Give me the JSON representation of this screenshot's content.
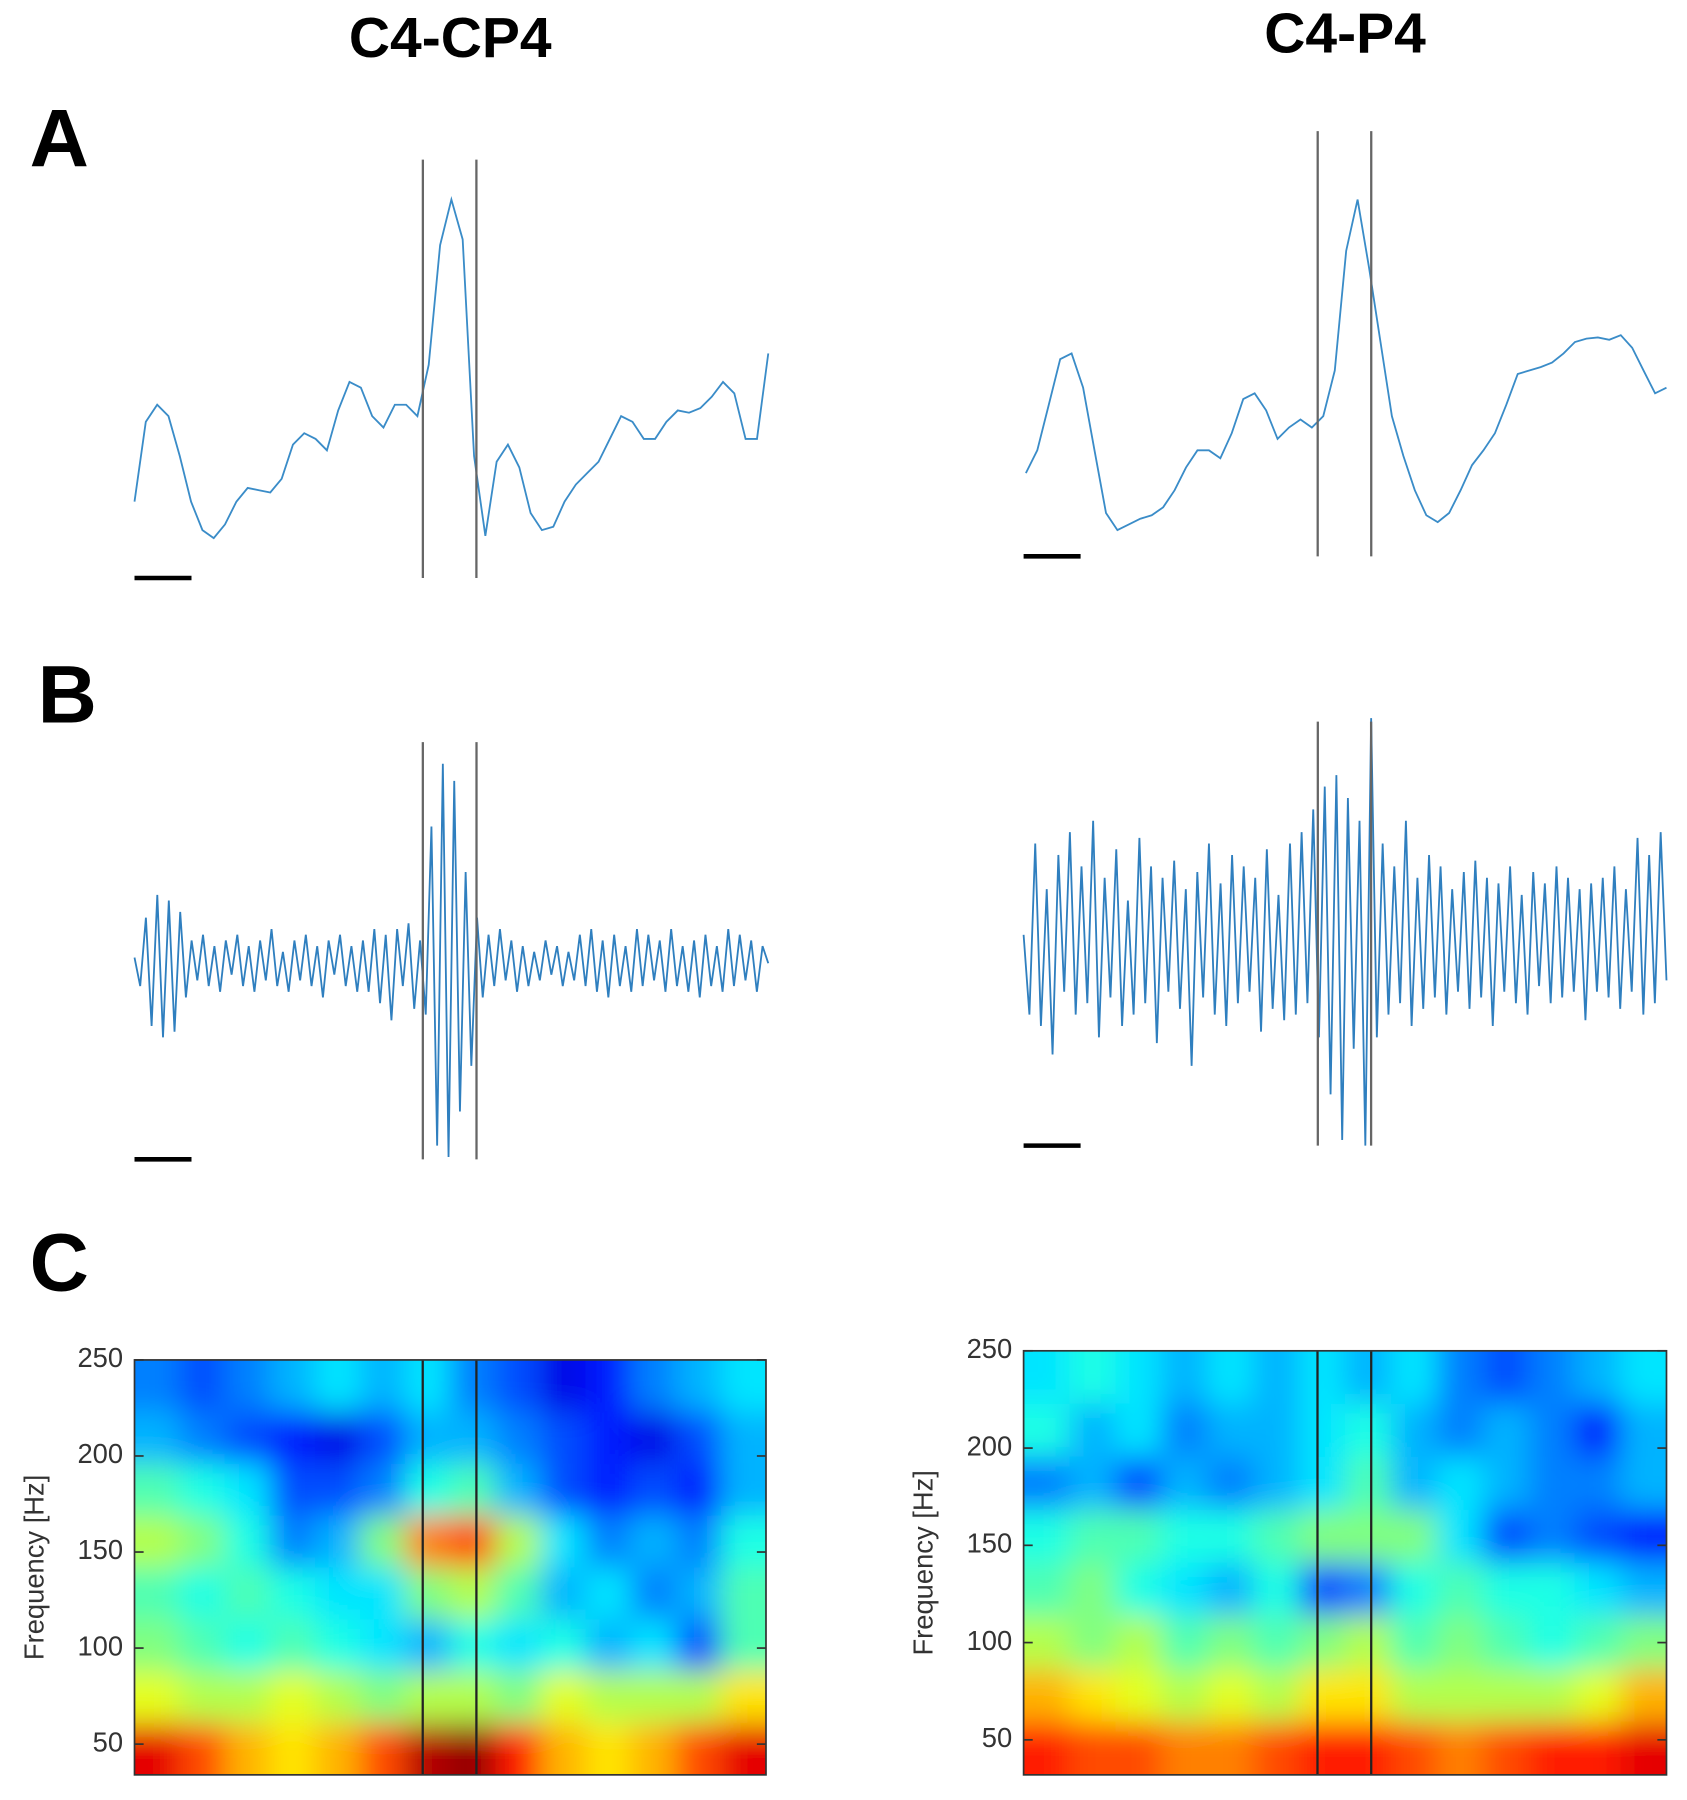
{
  "column_titles": [
    "C4-CP4",
    "C4-P4"
  ],
  "panel_labels": [
    "A",
    "B",
    "C"
  ],
  "chart_data": [
    {
      "type": "line",
      "color": "#3a8cc8",
      "events": [
        25.48,
        30.21
      ],
      "values": [
        60,
        130,
        145,
        135,
        100,
        60,
        35,
        28,
        40,
        60,
        72,
        70,
        68,
        80,
        110,
        120,
        115,
        105,
        140,
        165,
        160,
        135,
        125,
        145,
        145,
        135,
        180,
        285,
        325,
        290,
        100,
        30,
        95,
        110,
        90,
        50,
        35,
        38,
        60,
        75,
        85,
        95,
        115,
        135,
        130,
        115,
        115,
        130,
        140,
        138,
        142,
        152,
        165,
        155,
        115,
        115,
        190
      ]
    },
    {
      "type": "line",
      "color": "#3a8cc8",
      "events": [
        25.51,
        30.19
      ],
      "values": [
        65,
        85,
        125,
        165,
        170,
        140,
        85,
        30,
        15,
        20,
        25,
        28,
        35,
        50,
        70,
        85,
        85,
        78,
        100,
        130,
        135,
        120,
        95,
        105,
        112,
        105,
        115,
        155,
        260,
        305,
        245,
        180,
        115,
        80,
        50,
        28,
        22,
        30,
        50,
        72,
        85,
        100,
        125,
        152,
        155,
        158,
        162,
        170,
        180,
        183,
        184,
        182,
        186,
        175,
        155,
        135,
        140
      ]
    },
    {
      "type": "line",
      "color": "#2f7fbf",
      "events": [
        50.5,
        59.9
      ],
      "values": [
        5,
        -20,
        40,
        -55,
        60,
        -65,
        55,
        -60,
        45,
        -30,
        20,
        -15,
        25,
        -20,
        15,
        -25,
        20,
        -10,
        25,
        -20,
        15,
        -25,
        20,
        -15,
        30,
        -20,
        10,
        -25,
        20,
        -15,
        25,
        -20,
        15,
        -30,
        20,
        -10,
        25,
        -20,
        15,
        -25,
        20,
        -25,
        30,
        -35,
        25,
        -50,
        30,
        -20,
        35,
        -40,
        20,
        -45,
        120,
        -160,
        175,
        -170,
        160,
        -130,
        80,
        -90,
        40,
        -30,
        25,
        -20,
        30,
        -15,
        20,
        -25,
        15,
        -20,
        10,
        -15,
        20,
        -10,
        15,
        -20,
        10,
        -15,
        25,
        -20,
        30,
        -25,
        20,
        -30,
        25,
        -20,
        15,
        -25,
        30,
        -20,
        25,
        -15,
        20,
        -25,
        30,
        -20,
        15,
        -25,
        20,
        -30,
        25,
        -20,
        15,
        -25,
        30,
        -20,
        25,
        -15,
        20,
        -25,
        15,
        0
      ]
    },
    {
      "type": "line",
      "color": "#2f7fbf",
      "events": [
        50.8,
        60.0
      ],
      "values": [
        10,
        -60,
        90,
        -70,
        50,
        -95,
        80,
        -40,
        100,
        -60,
        70,
        -50,
        110,
        -80,
        60,
        -45,
        85,
        -70,
        40,
        -60,
        95,
        -50,
        70,
        -85,
        60,
        -40,
        75,
        -55,
        50,
        -105,
        65,
        -45,
        90,
        -60,
        55,
        -70,
        80,
        -50,
        70,
        -40,
        60,
        -75,
        85,
        -55,
        45,
        -65,
        90,
        -60,
        100,
        -50,
        120,
        -80,
        140,
        -130,
        150,
        -170,
        130,
        -90,
        110,
        -175,
        200,
        -80,
        90,
        -60,
        70,
        -50,
        110,
        -70,
        60,
        -55,
        80,
        -45,
        70,
        -60,
        50,
        -40,
        65,
        -55,
        75,
        -45,
        60,
        -70,
        55,
        -40,
        70,
        -50,
        45,
        -60,
        65,
        -35,
        55,
        -50,
        70,
        -45,
        60,
        -40,
        50,
        -65,
        55,
        -40,
        60,
        -45,
        70,
        -55,
        50,
        -40,
        95,
        -60,
        80,
        -50,
        100,
        -30
      ]
    },
    {
      "type": "heatmap",
      "colormap": "jet",
      "ylabel": "Frequency [Hz]",
      "ylim": [
        34,
        250
      ],
      "yticks": [
        50,
        100,
        150,
        200,
        250
      ],
      "events": [
        6.39,
        7.58
      ],
      "z": [
        [
          0.25,
          0.2,
          0.25,
          0.3,
          0.35,
          0.3,
          0.35,
          0.25,
          0.2,
          0.1,
          0.15,
          0.25,
          0.3,
          0.35
        ],
        [
          0.3,
          0.25,
          0.2,
          0.15,
          0.1,
          0.2,
          0.3,
          0.3,
          0.25,
          0.2,
          0.15,
          0.1,
          0.2,
          0.3
        ],
        [
          0.45,
          0.4,
          0.35,
          0.2,
          0.2,
          0.25,
          0.4,
          0.45,
          0.3,
          0.2,
          0.15,
          0.2,
          0.15,
          0.3
        ],
        [
          0.55,
          0.5,
          0.4,
          0.25,
          0.3,
          0.5,
          0.75,
          0.8,
          0.55,
          0.35,
          0.25,
          0.3,
          0.25,
          0.4
        ],
        [
          0.45,
          0.4,
          0.45,
          0.4,
          0.35,
          0.35,
          0.5,
          0.55,
          0.45,
          0.3,
          0.35,
          0.25,
          0.3,
          0.45
        ],
        [
          0.5,
          0.45,
          0.4,
          0.45,
          0.4,
          0.35,
          0.3,
          0.4,
          0.35,
          0.4,
          0.3,
          0.35,
          0.2,
          0.45
        ],
        [
          0.6,
          0.55,
          0.55,
          0.6,
          0.55,
          0.5,
          0.55,
          0.55,
          0.5,
          0.6,
          0.55,
          0.55,
          0.55,
          0.65
        ],
        [
          0.9,
          0.8,
          0.7,
          0.65,
          0.7,
          0.8,
          0.95,
          0.98,
          0.85,
          0.7,
          0.65,
          0.7,
          0.8,
          0.9
        ]
      ]
    },
    {
      "type": "heatmap",
      "colormap": "jet",
      "ylabel": "Frequency [Hz]",
      "ylim": [
        32,
        250
      ],
      "yticks": [
        50,
        100,
        150,
        200,
        250
      ],
      "events": [
        6.4,
        7.57
      ],
      "z": [
        [
          0.35,
          0.4,
          0.35,
          0.3,
          0.35,
          0.3,
          0.35,
          0.3,
          0.35,
          0.25,
          0.2,
          0.25,
          0.3,
          0.35
        ],
        [
          0.4,
          0.3,
          0.35,
          0.25,
          0.3,
          0.3,
          0.35,
          0.4,
          0.3,
          0.25,
          0.3,
          0.25,
          0.15,
          0.3
        ],
        [
          0.25,
          0.3,
          0.2,
          0.3,
          0.25,
          0.3,
          0.35,
          0.45,
          0.3,
          0.35,
          0.3,
          0.25,
          0.25,
          0.3
        ],
        [
          0.4,
          0.45,
          0.45,
          0.4,
          0.4,
          0.45,
          0.5,
          0.5,
          0.5,
          0.35,
          0.2,
          0.25,
          0.2,
          0.15
        ],
        [
          0.45,
          0.5,
          0.4,
          0.35,
          0.3,
          0.4,
          0.2,
          0.25,
          0.4,
          0.45,
          0.4,
          0.4,
          0.35,
          0.3
        ],
        [
          0.55,
          0.5,
          0.55,
          0.45,
          0.5,
          0.45,
          0.5,
          0.55,
          0.45,
          0.5,
          0.45,
          0.4,
          0.45,
          0.5
        ],
        [
          0.7,
          0.65,
          0.6,
          0.55,
          0.6,
          0.55,
          0.65,
          0.65,
          0.55,
          0.55,
          0.55,
          0.55,
          0.6,
          0.7
        ],
        [
          0.85,
          0.8,
          0.8,
          0.75,
          0.75,
          0.8,
          0.85,
          0.85,
          0.8,
          0.75,
          0.8,
          0.85,
          0.85,
          0.9
        ]
      ]
    }
  ]
}
